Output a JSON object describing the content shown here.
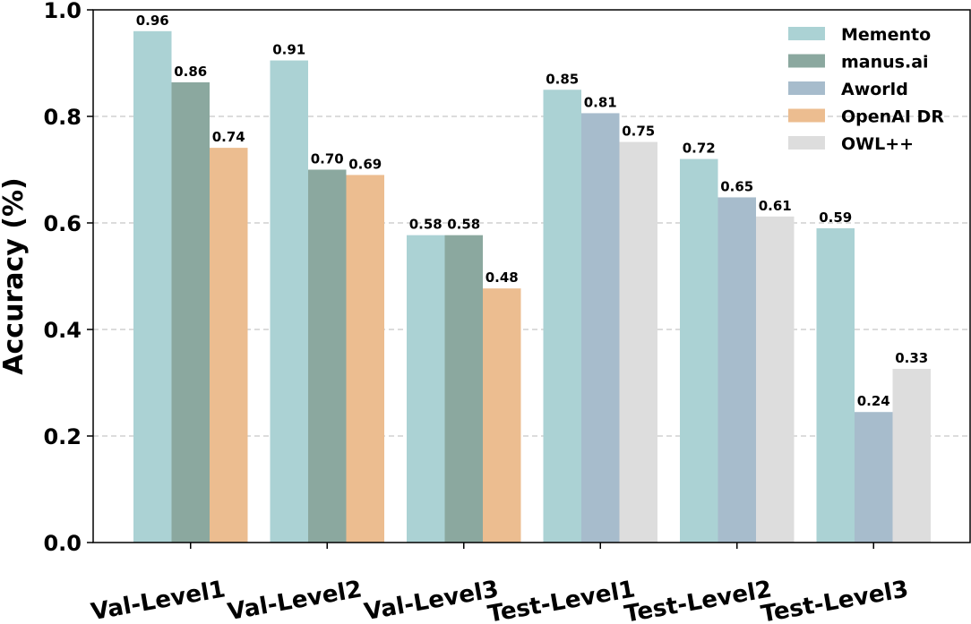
{
  "chart_data": {
    "type": "bar",
    "title": "",
    "xlabel": "",
    "ylabel": "Accuracy (%)",
    "ylim": [
      0,
      1.0
    ],
    "yticks": [
      "0.0",
      "0.2",
      "0.4",
      "0.6",
      "0.8",
      "1.0"
    ],
    "grid": true,
    "legend_position": "top-right",
    "categories": [
      "Val-Level1",
      "Val-Level2",
      "Val-Level3",
      "Test-Level1",
      "Test-Level2",
      "Test-Level3"
    ],
    "series": [
      {
        "name": "Memento",
        "color": "#abd2d4",
        "values": [
          0.96,
          0.905,
          0.577,
          0.85,
          0.72,
          0.59
        ],
        "labels": [
          "0.96",
          "0.91",
          "0.58",
          "0.85",
          "0.72",
          "0.59"
        ]
      },
      {
        "name": "manus.ai",
        "color": "#8ba89f",
        "values": [
          0.864,
          0.7,
          0.577,
          null,
          null,
          null
        ],
        "labels": [
          "0.86",
          "0.70",
          "0.58",
          null,
          null,
          null
        ]
      },
      {
        "name": "Aworld",
        "color": "#a7bccc",
        "values": [
          null,
          null,
          null,
          0.806,
          0.648,
          0.245
        ],
        "labels": [
          null,
          null,
          null,
          "0.81",
          "0.65",
          "0.24"
        ]
      },
      {
        "name": "OpenAI DR",
        "color": "#ecbd90",
        "values": [
          0.741,
          0.69,
          0.477,
          null,
          null,
          null
        ],
        "labels": [
          "0.74",
          "0.69",
          "0.48",
          null,
          null,
          null
        ]
      },
      {
        "name": "OWL++",
        "color": "#dddddd",
        "values": [
          null,
          null,
          null,
          0.752,
          0.612,
          0.326
        ],
        "labels": [
          null,
          null,
          null,
          "0.75",
          "0.61",
          "0.33"
        ]
      }
    ]
  }
}
